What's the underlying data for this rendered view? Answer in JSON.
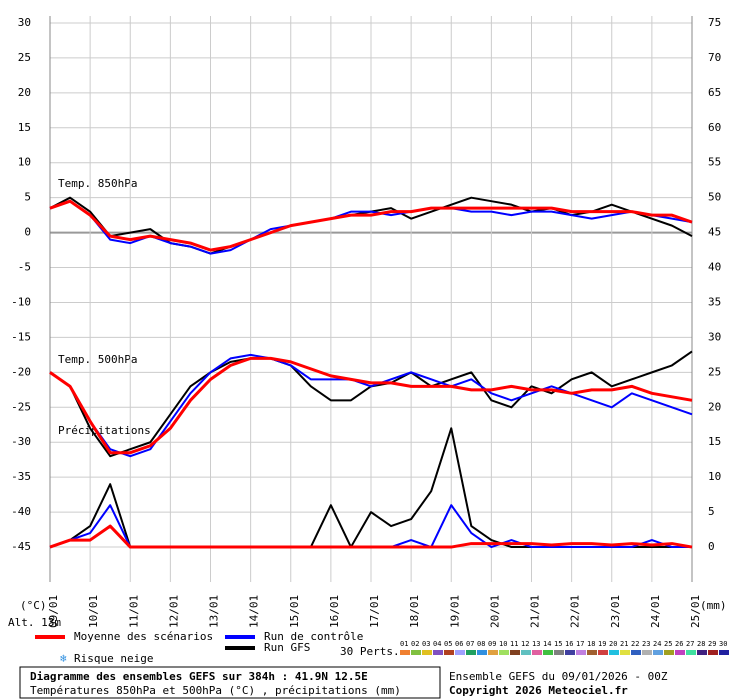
{
  "chart_data": {
    "type": "line",
    "x": [
      0,
      12,
      24,
      36,
      48,
      60,
      72,
      84,
      96,
      108,
      120,
      132,
      144,
      156,
      168,
      180,
      192,
      204,
      216,
      228,
      240,
      252,
      264,
      276,
      288,
      300,
      312,
      324,
      336,
      348,
      360,
      372,
      384
    ],
    "xlim": [
      0,
      384
    ],
    "xticks": [
      {
        "value": 0,
        "label": "09/01"
      },
      {
        "value": 24,
        "label": "10/01"
      },
      {
        "value": 48,
        "label": "11/01"
      },
      {
        "value": 72,
        "label": "12/01"
      },
      {
        "value": 96,
        "label": "13/01"
      },
      {
        "value": 120,
        "label": "14/01"
      },
      {
        "value": 144,
        "label": "15/01"
      },
      {
        "value": 168,
        "label": "16/01"
      },
      {
        "value": 192,
        "label": "17/01"
      },
      {
        "value": 216,
        "label": "18/01"
      },
      {
        "value": 240,
        "label": "19/01"
      },
      {
        "value": 264,
        "label": "20/01"
      },
      {
        "value": 288,
        "label": "21/01"
      },
      {
        "value": 312,
        "label": "22/01"
      },
      {
        "value": 336,
        "label": "23/01"
      },
      {
        "value": 360,
        "label": "24/01"
      },
      {
        "value": 384,
        "label": "25/01"
      }
    ],
    "ylim": [
      -50,
      31
    ],
    "yticks": [
      30,
      25,
      20,
      15,
      10,
      5,
      0,
      -5,
      -10,
      -15,
      -20,
      -25,
      -30,
      -35,
      -40,
      -45
    ],
    "y2lim": [
      -5,
      76
    ],
    "y2ticks": [
      75,
      70,
      65,
      60,
      55,
      50,
      45,
      40,
      35,
      30,
      25,
      20,
      15,
      10,
      5,
      0
    ],
    "y_unit": "(°C)",
    "y2_unit": "(mm)",
    "grid": true,
    "annotations": [
      "Temp. 850hPa",
      "Temp. 500hPa",
      "Précipitations",
      "Alt. 13m"
    ],
    "series": [
      {
        "name": "Moyenne des scénarios",
        "color": "#ff0000",
        "values": [
          3.5,
          4.5,
          2.5,
          -0.5,
          -1,
          -0.5,
          -1,
          -1.5,
          -2.5,
          -2,
          -1,
          0,
          1,
          1.5,
          2,
          2.5,
          2.5,
          3,
          3,
          3.5,
          3.5,
          3.5,
          3.5,
          3.5,
          3.5,
          3.5,
          3,
          3,
          3,
          3,
          2.5,
          2.5,
          1.5
        ],
        "values_500": [
          -20,
          -22,
          -27,
          -31.5,
          -31.5,
          -30.5,
          -28,
          -24,
          -21,
          -19,
          -18,
          -18,
          -18.5,
          -19.5,
          -20.5,
          -21,
          -21.5,
          -21.5,
          -22,
          -22,
          -22,
          -22.5,
          -22.5,
          -22,
          -22.5,
          -22.5,
          -23,
          -22.5,
          -22.5,
          -22,
          -23,
          -23.5,
          -24
        ],
        "precip": [
          0,
          1,
          1,
          3,
          0,
          0,
          0,
          0,
          0,
          0,
          0,
          0,
          0,
          0,
          0,
          0,
          0,
          0,
          0,
          0,
          0,
          0.5,
          0.5,
          0.5,
          0.5,
          0.3,
          0.5,
          0.5,
          0.3,
          0.5,
          0.3,
          0.5,
          0
        ]
      },
      {
        "name": "Run de contrôle",
        "color": "#0000ff",
        "values": [
          3.5,
          4.5,
          2.5,
          -1,
          -1.5,
          -0.5,
          -1.5,
          -2,
          -3,
          -2.5,
          -1,
          0.5,
          1,
          1.5,
          2,
          3,
          3,
          2.5,
          3,
          3.5,
          3.5,
          3,
          3,
          2.5,
          3,
          3,
          2.5,
          2,
          2.5,
          3,
          2.5,
          2,
          1.5
        ],
        "values_500": [
          -20,
          -22,
          -27,
          -31,
          -32,
          -31,
          -27,
          -23,
          -20,
          -18,
          -17.5,
          -18,
          -19,
          -21,
          -21,
          -21,
          -22,
          -21,
          -20,
          -21,
          -22,
          -21,
          -23,
          -24,
          -23,
          -22,
          -23,
          -24,
          -25,
          -23,
          -24,
          -25,
          -26
        ],
        "precip": [
          0,
          1,
          2,
          6,
          0,
          0,
          0,
          0,
          0,
          0,
          0,
          0,
          0,
          0,
          0,
          0,
          0,
          0,
          1,
          0,
          6,
          2,
          0,
          1,
          0,
          0,
          0,
          0,
          0,
          0,
          1,
          0,
          0
        ]
      },
      {
        "name": "Run GFS",
        "color": "#000000",
        "values": [
          3.5,
          5,
          3,
          -0.5,
          0,
          0.5,
          -1.5,
          -2,
          -3,
          -2,
          -1,
          0,
          1,
          1.5,
          2,
          2.5,
          3,
          3.5,
          2,
          3,
          4,
          5,
          4.5,
          4,
          3,
          3.5,
          2.5,
          3,
          4,
          3,
          2,
          1,
          -0.5
        ],
        "values_500": [
          -20,
          -22,
          -28,
          -32,
          -31,
          -30,
          -26,
          -22,
          -20,
          -18.5,
          -18,
          -18,
          -19,
          -22,
          -24,
          -24,
          -22,
          -21.5,
          -20,
          -22,
          -21,
          -20,
          -24,
          -25,
          -22,
          -23,
          -21,
          -20,
          -22,
          -21,
          -20,
          -19,
          -17
        ],
        "precip": [
          0,
          1,
          3,
          9,
          0,
          0,
          0,
          0,
          0,
          0,
          0,
          0,
          0,
          0,
          6,
          0,
          5,
          3,
          4,
          8,
          17,
          3,
          1,
          0,
          0,
          0,
          0,
          0,
          0,
          0,
          0,
          0,
          0
        ]
      }
    ],
    "snow_label": "Risque neige",
    "perturbations": {
      "label": "30 Perts.",
      "names": [
        "01",
        "02",
        "03",
        "04",
        "05",
        "06",
        "07",
        "08",
        "09",
        "10",
        "11",
        "12",
        "13",
        "14",
        "15",
        "16",
        "17",
        "18",
        "19",
        "20",
        "21",
        "22",
        "23",
        "24",
        "25",
        "26",
        "27",
        "28",
        "29",
        "30"
      ],
      "colors": [
        "#f08030",
        "#80c040",
        "#e0c020",
        "#8050c0",
        "#b04020",
        "#a0a0ff",
        "#20a060",
        "#3090e0",
        "#e0a040",
        "#a0e060",
        "#804020",
        "#60c0c0",
        "#e060a0",
        "#40c040",
        "#808080",
        "#4040a0",
        "#c080e0",
        "#a06030",
        "#d04040",
        "#20c0e0",
        "#e0e040",
        "#3060c0",
        "#b0b0b0",
        "#60a0e0",
        "#a0a020",
        "#c040c0",
        "#40e0a0",
        "#402080",
        "#a02020",
        "#2020a0"
      ]
    },
    "footer": {
      "title": "Diagramme des ensembles GEFS sur 384h : 41.9N 12.5E",
      "subtitle": "Températures 850hPa et 500hPa (°C) , précipitations (mm)",
      "run": "Ensemble GEFS du 09/01/2026 - 00Z",
      "copyright": "Copyright 2026 Meteociel.fr"
    }
  }
}
